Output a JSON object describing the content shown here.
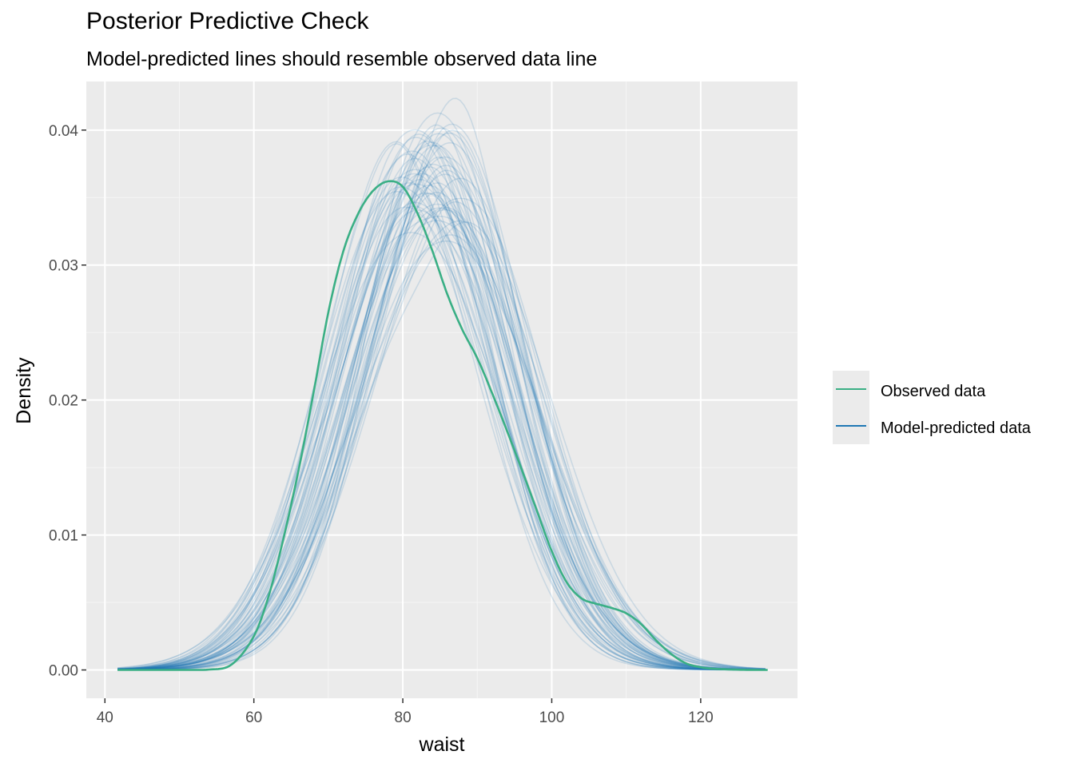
{
  "chart_data": {
    "type": "line",
    "title": "Posterior Predictive Check",
    "subtitle": "Model-predicted lines should resemble observed data line",
    "xlabel": "waist",
    "ylabel": "Density",
    "xlim": [
      37.5,
      133
    ],
    "ylim": [
      -0.0021,
      0.0436
    ],
    "xticks": [
      40,
      60,
      80,
      100,
      120
    ],
    "xtick_labels": [
      "40",
      "60",
      "80",
      "100",
      "120"
    ],
    "yticks": [
      0,
      0.01,
      0.02,
      0.03,
      0.04
    ],
    "ytick_labels": [
      "0.00",
      "0.01",
      "0.02",
      "0.03",
      "0.04"
    ],
    "grid": true,
    "legend_position": "right",
    "legend": [
      {
        "label": "Observed data",
        "color": "#3aaf85"
      },
      {
        "label": "Model-predicted data",
        "color": "#1f78b4"
      }
    ],
    "observed": {
      "name": "Observed data",
      "color": "#3aaf85",
      "x": [
        41.7,
        50,
        54,
        57,
        60,
        62,
        64,
        66,
        68,
        70,
        72,
        74,
        76,
        78,
        80,
        82,
        84,
        86,
        88,
        90,
        92,
        94,
        96,
        98,
        100,
        102,
        104,
        106,
        108,
        110,
        112,
        114,
        116,
        118,
        120,
        122,
        125,
        129
      ],
      "y": [
        0.0,
        0.0,
        3e-05,
        0.0004,
        0.0025,
        0.0055,
        0.0098,
        0.0148,
        0.0205,
        0.0265,
        0.031,
        0.0338,
        0.0355,
        0.0362,
        0.0358,
        0.0338,
        0.031,
        0.0278,
        0.0252,
        0.0231,
        0.0205,
        0.0177,
        0.0148,
        0.0118,
        0.0088,
        0.0065,
        0.0053,
        0.0049,
        0.0046,
        0.0042,
        0.0034,
        0.0022,
        0.0012,
        0.0005,
        0.0002,
        8e-05,
        2e-05,
        0.0
      ]
    },
    "predicted": {
      "name": "Model-predicted data",
      "color": "#1f78b4",
      "n_draws": 60,
      "summary": {
        "x_range": [
          41.7,
          129
        ],
        "peak_x_range": [
          78,
          88
        ],
        "peak_density_range": [
          0.032,
          0.041
        ]
      }
    }
  }
}
